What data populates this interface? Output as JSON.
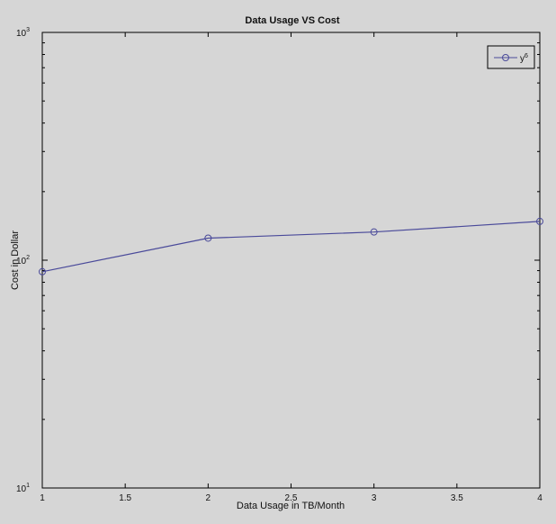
{
  "figure_background": "#d6d6d6",
  "plot_background": "#d6d6d6",
  "axis_color": "#000000",
  "chart_data": {
    "type": "line",
    "title": "Data Usage VS Cost",
    "xlabel": "Data Usage in TB/Month",
    "ylabel": "Cost in Dollar",
    "x_scale": "linear",
    "y_scale": "log",
    "xlim": [
      1,
      4
    ],
    "ylim": [
      10,
      1000
    ],
    "grid": false,
    "legend_position": "top-right",
    "x_tick_labels": [
      "1",
      "1.5",
      "2",
      "2.5",
      "3",
      "3.5",
      "4"
    ],
    "y_tick_labels": [
      {
        "base": "10",
        "exp": "1"
      },
      {
        "base": "10",
        "exp": "2"
      },
      {
        "base": "10",
        "exp": "3"
      }
    ],
    "series": [
      {
        "name": "y6",
        "name_base": "y",
        "name_sub": "6",
        "color": "#4a4a9a",
        "marker": "circle",
        "x": [
          1,
          2,
          3,
          4
        ],
        "y": [
          89,
          125,
          133,
          148
        ]
      }
    ]
  }
}
